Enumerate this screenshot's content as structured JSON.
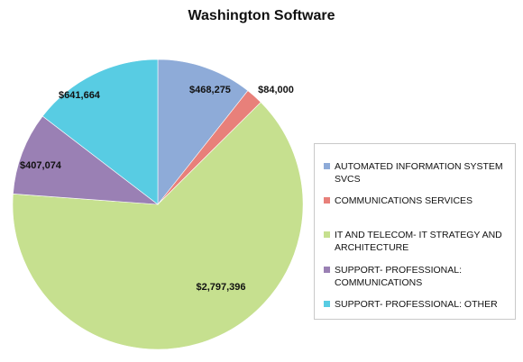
{
  "chart_data": {
    "type": "pie",
    "title": "Washington Software",
    "slices": [
      {
        "label": "AUTOMATED INFORMATION SYSTEM SVCS",
        "value": 468275,
        "value_label": "$468,275",
        "color": "#8eabd8"
      },
      {
        "label": "COMMUNICATIONS SERVICES",
        "value": 84000,
        "value_label": "$84,000",
        "color": "#e8807a"
      },
      {
        "label": "IT AND TELECOM- IT STRATEGY AND ARCHITECTURE",
        "value": 2797396,
        "value_label": "$2,797,396",
        "color": "#c6e08f"
      },
      {
        "label": "SUPPORT- PROFESSIONAL: COMMUNICATIONS",
        "value": 407074,
        "value_label": "$407,074",
        "color": "#9a80b4"
      },
      {
        "label": "SUPPORT- PROFESSIONAL: OTHER",
        "value": 641664,
        "value_label": "$641,664",
        "color": "#58cce3"
      }
    ],
    "legend_position": "right"
  }
}
